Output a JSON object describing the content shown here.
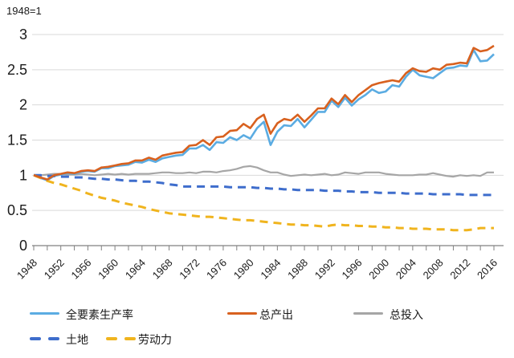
{
  "note": "1948=1",
  "chart_data": {
    "type": "line",
    "title": "1948=1",
    "grid": "horizontal",
    "legend_position": "bottom",
    "axis_color": "#808080",
    "gridline_color": "#d9d9d9",
    "label_color": "#1a1a1a",
    "y_axis": {
      "range": [
        0,
        3
      ],
      "ticks": [
        0,
        0.5,
        1,
        1.5,
        2,
        2.5,
        3
      ],
      "tick_labels": [
        "0",
        "0.5",
        "1",
        "1.5",
        "2",
        "2.5",
        "3"
      ]
    },
    "x_axis": {
      "range": [
        1948,
        2016
      ],
      "minor_tick_step_years": 2,
      "tick_labels": [
        "1948",
        "1952",
        "1956",
        "1960",
        "1964",
        "1968",
        "1972",
        "1976",
        "1980",
        "1984",
        "1988",
        "1992",
        "1996",
        "2000",
        "2004",
        "2008",
        "2012",
        "2016"
      ]
    },
    "years": [
      1948,
      1949,
      1950,
      1951,
      1952,
      1953,
      1954,
      1955,
      1956,
      1957,
      1958,
      1959,
      1960,
      1961,
      1962,
      1963,
      1964,
      1965,
      1966,
      1967,
      1968,
      1969,
      1970,
      1971,
      1972,
      1973,
      1974,
      1975,
      1976,
      1977,
      1978,
      1979,
      1980,
      1981,
      1982,
      1983,
      1984,
      1985,
      1986,
      1987,
      1988,
      1989,
      1990,
      1991,
      1992,
      1993,
      1994,
      1995,
      1996,
      1997,
      1998,
      1999,
      2000,
      2001,
      2002,
      2003,
      2004,
      2005,
      2006,
      2007,
      2008,
      2009,
      2010,
      2011,
      2012,
      2013,
      2014,
      2015,
      2016
    ],
    "series": [
      {
        "name": "全要素生产率",
        "color": "#5BACE2",
        "style": "solid",
        "width": 2.6,
        "values": [
          1.0,
          0.96,
          0.93,
          0.99,
          1.01,
          1.03,
          1.02,
          1.05,
          1.06,
          1.05,
          1.1,
          1.1,
          1.13,
          1.14,
          1.15,
          1.19,
          1.18,
          1.22,
          1.19,
          1.24,
          1.26,
          1.28,
          1.29,
          1.38,
          1.38,
          1.43,
          1.36,
          1.47,
          1.46,
          1.54,
          1.5,
          1.57,
          1.52,
          1.67,
          1.76,
          1.43,
          1.62,
          1.71,
          1.7,
          1.8,
          1.68,
          1.79,
          1.9,
          1.9,
          2.06,
          1.97,
          2.1,
          1.99,
          2.08,
          2.14,
          2.22,
          2.17,
          2.19,
          2.28,
          2.26,
          2.4,
          2.5,
          2.42,
          2.4,
          2.38,
          2.45,
          2.52,
          2.53,
          2.56,
          2.55,
          2.78,
          2.62,
          2.63,
          2.72
        ]
      },
      {
        "name": "总产出",
        "color": "#D8611F",
        "style": "solid",
        "width": 2.6,
        "values": [
          1.0,
          0.97,
          0.94,
          1.0,
          1.02,
          1.04,
          1.03,
          1.06,
          1.07,
          1.06,
          1.11,
          1.12,
          1.14,
          1.16,
          1.17,
          1.21,
          1.21,
          1.25,
          1.22,
          1.28,
          1.3,
          1.32,
          1.33,
          1.42,
          1.43,
          1.5,
          1.43,
          1.54,
          1.55,
          1.63,
          1.64,
          1.73,
          1.67,
          1.8,
          1.86,
          1.59,
          1.74,
          1.8,
          1.78,
          1.86,
          1.76,
          1.85,
          1.95,
          1.95,
          2.09,
          2.01,
          2.14,
          2.04,
          2.14,
          2.21,
          2.28,
          2.31,
          2.33,
          2.35,
          2.33,
          2.45,
          2.52,
          2.48,
          2.47,
          2.52,
          2.5,
          2.57,
          2.58,
          2.6,
          2.59,
          2.81,
          2.76,
          2.78,
          2.84
        ]
      },
      {
        "name": "总投入",
        "color": "#A6A6A6",
        "style": "solid",
        "width": 2.2,
        "values": [
          1.0,
          1.0,
          1.01,
          1.02,
          1.02,
          1.01,
          1.01,
          1.02,
          1.01,
          1.0,
          1.01,
          1.02,
          1.01,
          1.02,
          1.01,
          1.02,
          1.02,
          1.02,
          1.03,
          1.04,
          1.04,
          1.03,
          1.03,
          1.04,
          1.03,
          1.05,
          1.05,
          1.04,
          1.06,
          1.07,
          1.09,
          1.12,
          1.13,
          1.11,
          1.07,
          1.04,
          1.04,
          1.01,
          0.99,
          1.0,
          1.01,
          1.0,
          1.01,
          1.02,
          1.0,
          1.01,
          1.04,
          1.03,
          1.02,
          1.04,
          1.04,
          1.04,
          1.02,
          1.01,
          1.0,
          1.0,
          1.0,
          1.01,
          1.01,
          1.03,
          1.01,
          0.99,
          0.98,
          1.0,
          0.99,
          1.0,
          0.99,
          1.04,
          1.04
        ]
      },
      {
        "name": "土地",
        "color": "#3E6DCC",
        "style": "dashed",
        "width": 3,
        "values": [
          1.0,
          1.0,
          0.99,
          0.99,
          0.98,
          0.98,
          0.97,
          0.97,
          0.96,
          0.95,
          0.95,
          0.94,
          0.94,
          0.93,
          0.92,
          0.92,
          0.91,
          0.91,
          0.9,
          0.89,
          0.87,
          0.86,
          0.84,
          0.84,
          0.84,
          0.84,
          0.84,
          0.84,
          0.84,
          0.83,
          0.83,
          0.83,
          0.83,
          0.82,
          0.82,
          0.81,
          0.81,
          0.8,
          0.8,
          0.79,
          0.79,
          0.79,
          0.79,
          0.78,
          0.78,
          0.78,
          0.77,
          0.77,
          0.76,
          0.76,
          0.76,
          0.75,
          0.75,
          0.75,
          0.75,
          0.74,
          0.74,
          0.74,
          0.74,
          0.73,
          0.73,
          0.73,
          0.73,
          0.73,
          0.72,
          0.72,
          0.72,
          0.72,
          0.72
        ]
      },
      {
        "name": "劳动力",
        "color": "#F0B41E",
        "style": "dashed",
        "width": 3,
        "values": [
          1.0,
          0.96,
          0.92,
          0.89,
          0.87,
          0.84,
          0.81,
          0.78,
          0.74,
          0.71,
          0.68,
          0.66,
          0.64,
          0.61,
          0.59,
          0.57,
          0.55,
          0.52,
          0.5,
          0.48,
          0.46,
          0.45,
          0.44,
          0.43,
          0.42,
          0.41,
          0.41,
          0.4,
          0.39,
          0.38,
          0.37,
          0.36,
          0.36,
          0.35,
          0.34,
          0.33,
          0.32,
          0.31,
          0.3,
          0.3,
          0.29,
          0.29,
          0.28,
          0.27,
          0.29,
          0.3,
          0.29,
          0.29,
          0.28,
          0.28,
          0.27,
          0.27,
          0.26,
          0.26,
          0.25,
          0.25,
          0.24,
          0.24,
          0.24,
          0.23,
          0.23,
          0.23,
          0.22,
          0.22,
          0.22,
          0.23,
          0.25,
          0.25,
          0.25
        ]
      }
    ],
    "draw_order": [
      2,
      0,
      3,
      4,
      1
    ]
  }
}
